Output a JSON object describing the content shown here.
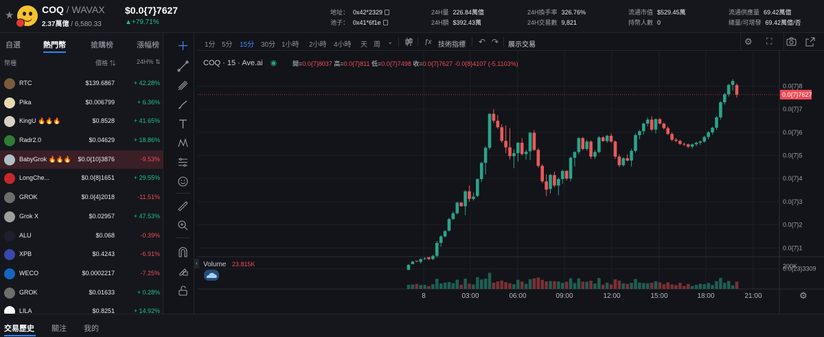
{
  "header": {
    "pair": "COQ",
    "quote": "/ WAVAX",
    "mcap": "2.37萬億",
    "mcap_sub": "6,580.33",
    "price": "$0.0{7}7627",
    "change": "+79.71%",
    "stats": [
      {
        "label": "地址：",
        "value": "0x42*2329",
        "copy": true
      },
      {
        "label": "池子：",
        "value": "0x41*6f1e",
        "copy": true
      },
      {
        "label": "24H量",
        "value": "226.84萬億"
      },
      {
        "label": "24H額",
        "value": "$392.43萬"
      },
      {
        "label": "24H換手率",
        "value": "326.76%"
      },
      {
        "label": "24H交易數",
        "value": "9,821"
      },
      {
        "label": "流通市值",
        "value": "$529.45萬"
      },
      {
        "label": "持幣人數",
        "value": "0"
      },
      {
        "label": "流通供應量",
        "value": "69.42萬億"
      },
      {
        "label": "總量/可增發",
        "value": "69.42萬億/否"
      }
    ]
  },
  "left": {
    "tabs": [
      "自選",
      "熱門幣",
      "搶購榜",
      "漲幅榜"
    ],
    "col_token": "幣種",
    "col_price": "價格",
    "col_change": "24H%",
    "tokens": [
      {
        "name": "RTC",
        "price": "$139.6867",
        "change": "+ 42.28%",
        "dir": "up",
        "color": "#7a5c3c"
      },
      {
        "name": "Pika",
        "price": "$0.006799",
        "change": "+ 6.36%",
        "dir": "up",
        "color": "#e8d9b0"
      },
      {
        "name": "KingU 🔥🔥🔥",
        "price": "$0.8528",
        "change": "+ 41.65%",
        "dir": "up",
        "color": "#d8d2c4"
      },
      {
        "name": "Radr2.0",
        "price": "$0.04629",
        "change": "+ 18.86%",
        "dir": "up",
        "color": "#2e7d32"
      },
      {
        "name": "BabyGrok 🔥🔥🔥",
        "price": "$0.0{10}3876",
        "change": "-9.53%",
        "dir": "down",
        "color": "#b0bec5",
        "selected": true
      },
      {
        "name": "LongChe...",
        "price": "$0.0{8}1651",
        "change": "+ 29.55%",
        "dir": "up",
        "color": "#c62828"
      },
      {
        "name": "GROK",
        "price": "$0.0{4}2018",
        "change": "-11.51%",
        "dir": "down",
        "color": "#6d6d6d"
      },
      {
        "name": "Grok X",
        "price": "$0.02957",
        "change": "+ 47.53%",
        "dir": "up",
        "color": "#9e9e9e"
      },
      {
        "name": "ALU",
        "price": "$0.068",
        "change": "-0.39%",
        "dir": "down",
        "color": "#1e1e2e"
      },
      {
        "name": "XPB",
        "price": "$0.4243",
        "change": "-6.91%",
        "dir": "down",
        "color": "#3949ab"
      },
      {
        "name": "WECO",
        "price": "$0.0002217",
        "change": "-7.25%",
        "dir": "down",
        "color": "#1565c0"
      },
      {
        "name": "GROK",
        "price": "$0.01633",
        "change": "+ 0.28%",
        "dir": "up",
        "color": "#6d6d6d"
      },
      {
        "name": "LILA",
        "price": "$0.8251",
        "change": "+ 14.92%",
        "dir": "up",
        "color": "#fafafa"
      }
    ]
  },
  "toolbar": {
    "intervals": [
      "1分",
      "5分",
      "15分",
      "30分",
      "1小時",
      "2小時",
      "4小時",
      "天",
      "周"
    ],
    "active_interval": "15分",
    "indicators": "技術指標",
    "show_trades": "展示交易"
  },
  "chart": {
    "symbol": "COQ · 15 · Ave.ai",
    "ohlc_open_label": "開=",
    "open": "0.0{7}8037",
    "ohlc_high_label": "高=",
    "high": "0.0{7}811",
    "ohlc_low_label": "低=",
    "low": "0.0{7}7498",
    "ohlc_close_label": "收=",
    "close": "0.0{7}7627",
    "diff": "-0.0{8}4107 (-5.1103%)",
    "volume_label": "Volume",
    "volume_value": "23.815K"
  },
  "chart_data": {
    "type": "candlestick",
    "yticks": [
      "0.0{7}8",
      "0.0{7}7",
      "0.0{7}6",
      "0.0{7}5",
      "0.0{7}4",
      "0.0{7}3",
      "0.0{7}2",
      "0.0{7}1",
      "0.0{23}3309"
    ],
    "current_price_label": "0.0{7}7627",
    "vol_tick": "200K",
    "xticks": [
      "8",
      "03:00",
      "06:00",
      "09:00",
      "12:00",
      "15:00",
      "18:00",
      "21:00"
    ],
    "ohlc_units_1e7": [
      [
        0.05,
        0.05,
        0.3,
        0.27
      ],
      [
        0.3,
        0.3,
        0.45,
        0.41
      ],
      [
        0.45,
        0.38,
        0.45,
        0.42
      ],
      [
        0.4,
        0.33,
        0.55,
        0.52
      ],
      [
        0.55,
        0.48,
        0.6,
        0.55
      ],
      [
        0.6,
        0.48,
        0.6,
        0.52
      ],
      [
        0.52,
        0.48,
        0.7,
        0.66
      ],
      [
        0.66,
        0.58,
        1.3,
        1.22
      ],
      [
        1.22,
        1.05,
        1.55,
        1.5
      ],
      [
        1.5,
        1.46,
        1.78,
        1.73
      ],
      [
        1.75,
        1.7,
        2.3,
        2.25
      ],
      [
        2.25,
        2.22,
        2.58,
        2.5
      ],
      [
        2.5,
        2.45,
        3.0,
        2.96
      ],
      [
        2.96,
        2.8,
        3.0,
        2.8
      ],
      [
        2.8,
        2.42,
        3.5,
        3.45
      ],
      [
        3.45,
        3.0,
        3.7,
        3.12
      ],
      [
        3.12,
        3.05,
        3.4,
        3.22
      ],
      [
        3.25,
        3.2,
        4.0,
        3.98
      ],
      [
        3.98,
        3.85,
        4.73,
        4.68
      ],
      [
        4.68,
        4.18,
        5.4,
        5.33
      ],
      [
        5.33,
        5.25,
        6.83,
        6.8
      ],
      [
        6.8,
        6.4,
        7.0,
        6.5
      ],
      [
        6.5,
        6.15,
        6.75,
        6.22
      ],
      [
        6.22,
        5.55,
        6.35,
        5.63
      ],
      [
        5.63,
        5.1,
        6.3,
        5.35
      ],
      [
        5.35,
        4.82,
        6.18,
        4.97
      ],
      [
        4.97,
        4.45,
        5.27,
        5.1
      ],
      [
        5.1,
        4.73,
        5.58,
        5.55
      ],
      [
        5.55,
        5.0,
        5.75,
        5.06
      ],
      [
        5.06,
        4.82,
        5.25,
        5.16
      ],
      [
        5.18,
        4.8,
        6.02,
        5.98
      ],
      [
        5.98,
        5.2,
        6.1,
        5.24
      ],
      [
        5.24,
        4.48,
        5.32,
        4.55
      ],
      [
        4.55,
        3.8,
        4.62,
        3.88
      ],
      [
        3.88,
        3.25,
        4.18,
        3.52
      ],
      [
        3.55,
        3.35,
        4.2,
        4.16
      ],
      [
        4.15,
        3.62,
        4.3,
        3.7
      ],
      [
        3.7,
        3.28,
        4.05,
        3.98
      ],
      [
        3.98,
        3.78,
        4.38,
        4.33
      ],
      [
        4.33,
        3.92,
        4.37,
        4.0
      ],
      [
        4.0,
        3.88,
        4.95,
        4.9
      ],
      [
        4.9,
        4.52,
        5.18,
        5.15
      ],
      [
        5.15,
        5.05,
        5.8,
        5.75
      ],
      [
        5.75,
        5.22,
        5.8,
        5.28
      ],
      [
        5.28,
        5.2,
        5.68,
        5.6
      ],
      [
        5.6,
        4.85,
        5.65,
        4.95
      ],
      [
        4.95,
        4.85,
        5.23,
        5.15
      ],
      [
        5.15,
        5.1,
        5.84,
        5.78
      ],
      [
        5.78,
        5.6,
        5.84,
        5.62
      ],
      [
        5.62,
        5.55,
        5.9,
        5.85
      ],
      [
        5.85,
        5.55,
        5.95,
        5.6
      ],
      [
        5.6,
        4.85,
        5.65,
        4.95
      ],
      [
        4.95,
        4.5,
        5.05,
        4.58
      ],
      [
        4.58,
        4.52,
        4.92,
        4.88
      ],
      [
        4.88,
        4.73,
        5.05,
        4.78
      ],
      [
        4.78,
        4.52,
        5.28,
        5.2
      ],
      [
        5.2,
        5.12,
        5.95,
        5.88
      ],
      [
        5.88,
        5.7,
        6.1,
        6.05
      ],
      [
        6.05,
        5.9,
        6.42,
        6.38
      ],
      [
        6.38,
        6.27,
        6.65,
        6.55
      ],
      [
        6.55,
        6.05,
        6.7,
        6.12
      ],
      [
        6.12,
        5.95,
        6.6,
        6.57
      ],
      [
        6.57,
        6.33,
        6.62,
        6.38
      ],
      [
        6.38,
        6.12,
        6.42,
        6.18
      ],
      [
        6.18,
        5.88,
        6.25,
        5.93
      ],
      [
        5.93,
        5.62,
        6.0,
        5.68
      ],
      [
        5.68,
        5.58,
        5.75,
        5.63
      ],
      [
        5.63,
        5.45,
        5.68,
        5.5
      ],
      [
        5.5,
        5.4,
        5.56,
        5.48
      ],
      [
        5.48,
        5.32,
        5.52,
        5.38
      ],
      [
        5.38,
        5.3,
        5.52,
        5.48
      ],
      [
        5.48,
        5.4,
        5.6,
        5.55
      ],
      [
        5.55,
        5.45,
        5.65,
        5.6
      ],
      [
        5.6,
        5.55,
        5.85,
        5.8
      ],
      [
        5.8,
        5.7,
        6.05,
        6.0
      ],
      [
        6.0,
        5.9,
        6.25,
        6.2
      ],
      [
        6.2,
        6.1,
        6.7,
        6.65
      ],
      [
        6.65,
        6.55,
        7.35,
        7.3
      ],
      [
        7.3,
        7.2,
        7.7,
        7.65
      ],
      [
        7.65,
        7.55,
        8.1,
        8.05
      ],
      [
        8.05,
        7.8,
        8.3,
        8.22
      ],
      [
        8.04,
        7.5,
        8.11,
        7.63
      ]
    ]
  }
}
